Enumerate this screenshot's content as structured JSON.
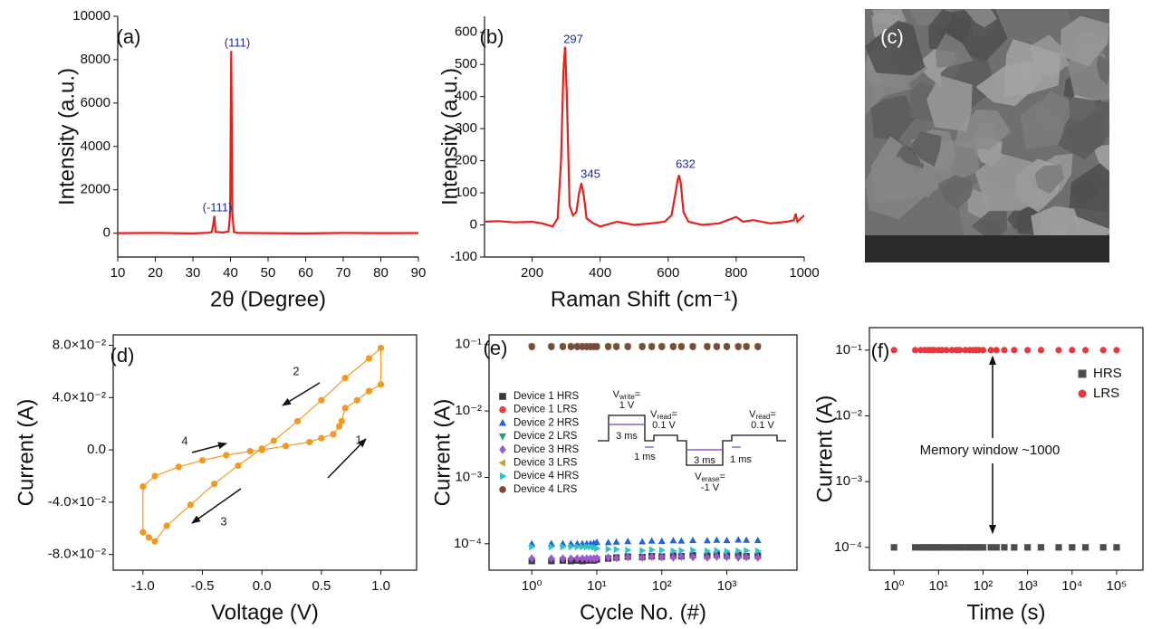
{
  "chart_data": [
    {
      "type": "line",
      "panel_label": "(a)",
      "xlabel": "2θ (Degree)",
      "ylabel": "Intensity (a.u.)",
      "color": "#e8201c",
      "x": [
        10,
        20,
        30,
        34,
        35,
        35.4,
        35.7,
        36,
        38,
        39.5,
        39.9,
        40.2,
        40.5,
        40.9,
        42,
        50,
        60,
        70,
        80,
        90
      ],
      "values": [
        0,
        10,
        -10,
        20,
        50,
        400,
        800,
        60,
        30,
        80,
        900,
        8400,
        900,
        60,
        10,
        0,
        -10,
        10,
        0,
        5
      ],
      "xlim": [
        10,
        90
      ],
      "ylim": [
        -1100,
        10000
      ],
      "xticks": [
        10,
        20,
        30,
        40,
        50,
        60,
        70,
        80,
        90
      ],
      "yticks": [
        0,
        2000,
        4000,
        6000,
        8000,
        10000
      ],
      "annotations": [
        "(-111)",
        "(111)"
      ],
      "annotation_color": "#1c2a9c"
    },
    {
      "type": "line",
      "panel_label": "(b)",
      "xlabel": "Raman Shift (cm⁻¹)",
      "ylabel": "Intensity (a.u.)",
      "color": "#e8201c",
      "x": [
        60,
        100,
        150,
        200,
        230,
        260,
        275,
        285,
        292,
        297,
        302,
        310,
        320,
        330,
        338,
        345,
        352,
        360,
        380,
        400,
        450,
        500,
        550,
        590,
        610,
        620,
        628,
        632,
        637,
        645,
        660,
        700,
        750,
        800,
        820,
        850,
        900,
        950,
        970,
        975,
        980,
        1000
      ],
      "values": [
        10,
        12,
        8,
        10,
        5,
        -5,
        20,
        200,
        480,
        555,
        400,
        60,
        30,
        40,
        100,
        130,
        90,
        20,
        5,
        -5,
        10,
        0,
        5,
        10,
        30,
        90,
        140,
        155,
        130,
        40,
        10,
        0,
        5,
        25,
        10,
        15,
        5,
        10,
        15,
        35,
        10,
        30
      ],
      "xlim": [
        60,
        1000
      ],
      "ylim": [
        -100,
        650
      ],
      "xticks": [
        200,
        400,
        600,
        800,
        1000
      ],
      "yticks": [
        -100,
        0,
        100,
        200,
        300,
        400,
        500,
        600
      ],
      "annotations": [
        "297",
        "345",
        "632"
      ],
      "annotation_color": "#1c2a9c"
    },
    {
      "type": "image",
      "panel_label": "(c)"
    },
    {
      "type": "line",
      "panel_label": "(d)",
      "xlabel": "Voltage (V)",
      "ylabel": "Current (A)",
      "color": "#f39a1e",
      "marker": "circle",
      "x": [
        0,
        0.2,
        0.4,
        0.5,
        0.6,
        0.65,
        0.67,
        0.7,
        0.8,
        0.9,
        1.0,
        1.0,
        0.9,
        0.7,
        0.5,
        0.3,
        0.1,
        0,
        -0.2,
        -0.4,
        -0.6,
        -0.8,
        -0.9,
        -0.95,
        -1.0,
        -1.0,
        -0.9,
        -0.7,
        -0.5,
        -0.3,
        -0.1,
        0
      ],
      "values": [
        0,
        0.003,
        0.006,
        0.009,
        0.012,
        0.018,
        0.022,
        0.032,
        0.038,
        0.045,
        0.05,
        0.078,
        0.07,
        0.055,
        0.038,
        0.022,
        0.007,
        0.001,
        -0.012,
        -0.026,
        -0.042,
        -0.058,
        -0.07,
        -0.067,
        -0.063,
        -0.028,
        -0.02,
        -0.013,
        -0.008,
        -0.004,
        -0.001,
        0
      ],
      "xlim": [
        -1.25,
        1.3
      ],
      "ylim": [
        -0.092,
        0.088
      ],
      "xticks": [
        {
          "value": -1,
          "label": "-1.0"
        },
        -0.5,
        {
          "value": 0,
          "label": "0.0"
        },
        0.5,
        {
          "value": 1,
          "label": "1.0"
        }
      ],
      "yticks": [
        {
          "value": -0.08,
          "label": "-8.0×10⁻²"
        },
        {
          "value": -0.04,
          "label": "-4.0×10⁻²"
        },
        {
          "value": 0,
          "label": "0.0"
        },
        {
          "value": 0.04,
          "label": "4.0×10⁻²"
        },
        {
          "value": 0.08,
          "label": "8.0×10⁻²"
        }
      ],
      "annotations": [
        "1",
        "2",
        "3",
        "4"
      ],
      "annotation_color": "#222222"
    },
    {
      "type": "scatter",
      "panel_label": "(e)",
      "xlabel": "Cycle No. (#)",
      "ylabel": "Current (A)",
      "xscale": "log",
      "yscale": "log",
      "xlim": [
        0.22,
        12000
      ],
      "ylim": [
        4e-05,
        0.14
      ],
      "xticks": [
        {
          "value": 1,
          "label": "10⁰"
        },
        {
          "value": 10,
          "label": "10¹"
        },
        {
          "value": 100,
          "label": "10²"
        },
        {
          "value": 1000,
          "label": "10³"
        }
      ],
      "yticks": [
        {
          "value": 0.0001,
          "label": "10⁻⁴"
        },
        {
          "value": 0.001,
          "label": "10⁻³"
        },
        {
          "value": 0.01,
          "label": "10⁻²"
        },
        {
          "value": 0.1,
          "label": "10⁻¹"
        }
      ],
      "x": [
        1,
        2,
        3,
        4,
        5,
        6,
        7,
        8,
        9,
        10,
        15,
        20,
        30,
        50,
        70,
        100,
        150,
        200,
        300,
        500,
        700,
        1000,
        1500,
        2000,
        3000
      ],
      "series": [
        {
          "name": "Device 1 HRS",
          "color": "#3a3a3a",
          "marker": "square",
          "values": [
            5.5e-05,
            5.5e-05,
            5.6e-05,
            5.5e-05,
            5.6e-05,
            5.5e-05,
            5.6e-05,
            5.7e-05,
            5.6e-05,
            5.8e-05,
            6e-05,
            6.2e-05,
            6.4e-05,
            6.3e-05,
            6.5e-05,
            6.4e-05,
            6.6e-05,
            6.5e-05,
            6.7e-05,
            6.6e-05,
            6.8e-05,
            6.6e-05,
            6.7e-05,
            6.5e-05,
            6.6e-05
          ]
        },
        {
          "name": "Device 1 LRS",
          "color": "#e8403a",
          "marker": "circle",
          "values": [
            0.095,
            0.095,
            0.095,
            0.095,
            0.095,
            0.095,
            0.095,
            0.095,
            0.095,
            0.095,
            0.095,
            0.095,
            0.095,
            0.095,
            0.095,
            0.095,
            0.095,
            0.095,
            0.095,
            0.095,
            0.095,
            0.095,
            0.095,
            0.095,
            0.095
          ]
        },
        {
          "name": "Device 2 HRS",
          "color": "#2563d6",
          "marker": "triangle",
          "values": [
            0.0001,
            0.0001,
            0.0001,
            0.0001,
            0.0001,
            0.0001,
            0.0001,
            0.0001,
            0.000102,
            0.000105,
            0.000104,
            0.000106,
            0.000108,
            0.000107,
            0.00011,
            0.000109,
            0.000111,
            0.00011,
            0.000112,
            0.000111,
            0.000113,
            0.000112,
            0.000114,
            0.000113,
            0.000112
          ]
        },
        {
          "name": "Device 2 LRS",
          "color": "#2a9d6a",
          "marker": "triangle-down",
          "values": [
            0.093,
            0.093,
            0.093,
            0.093,
            0.093,
            0.093,
            0.093,
            0.093,
            0.093,
            0.093,
            0.093,
            0.093,
            0.093,
            0.093,
            0.093,
            0.093,
            0.093,
            0.093,
            0.093,
            0.093,
            0.093,
            0.093,
            0.093,
            0.093,
            0.093
          ]
        },
        {
          "name": "Device 3 HRS",
          "color": "#9b59d0",
          "marker": "diamond",
          "values": [
            6e-05,
            6e-05,
            6e-05,
            6e-05,
            6e-05,
            6e-05,
            6e-05,
            6e-05,
            6e-05,
            6.1e-05,
            6.2e-05,
            6.1e-05,
            6.3e-05,
            6.2e-05,
            6.4e-05,
            6.3e-05,
            6.2e-05,
            6.4e-05,
            6.3e-05,
            6.2e-05,
            6.4e-05,
            6.3e-05,
            6.2e-05,
            6.3e-05,
            6.2e-05
          ]
        },
        {
          "name": "Device 3 LRS",
          "color": "#c9a227",
          "marker": "triangle-left",
          "values": [
            0.094,
            0.094,
            0.094,
            0.094,
            0.094,
            0.094,
            0.094,
            0.094,
            0.094,
            0.094,
            0.094,
            0.094,
            0.094,
            0.094,
            0.094,
            0.094,
            0.094,
            0.094,
            0.094,
            0.094,
            0.094,
            0.094,
            0.094,
            0.094,
            0.094
          ]
        },
        {
          "name": "Device 4 HRS",
          "color": "#2ec4c4",
          "marker": "triangle-right",
          "values": [
            9e-05,
            9e-05,
            9e-05,
            9e-05,
            9e-05,
            9e-05,
            9e-05,
            9e-05,
            8.8e-05,
            8.5e-05,
            8.3e-05,
            8.2e-05,
            8e-05,
            7.9e-05,
            8.1e-05,
            8e-05,
            7.8e-05,
            7.9e-05,
            8e-05,
            7.8e-05,
            7.9e-05,
            7.7e-05,
            7.8e-05,
            7.9e-05,
            7.8e-05
          ]
        },
        {
          "name": "Device 4 LRS",
          "color": "#7a4a3a",
          "marker": "circle",
          "values": [
            0.092,
            0.092,
            0.092,
            0.092,
            0.092,
            0.092,
            0.092,
            0.092,
            0.092,
            0.092,
            0.092,
            0.092,
            0.092,
            0.092,
            0.092,
            0.092,
            0.092,
            0.092,
            0.092,
            0.092,
            0.092,
            0.092,
            0.092,
            0.092,
            0.092
          ]
        }
      ],
      "inset": {
        "labels": [
          {
            "symbol": "V",
            "subscript": "write",
            "sign": "=",
            "value": "1 V"
          },
          {
            "symbol": "V",
            "subscript": "read",
            "sign": "=",
            "value": "0.1 V"
          },
          {
            "symbol": "V",
            "subscript": "erase",
            "sign": "=",
            "value": "-1 V"
          },
          {
            "symbol": "V",
            "subscript": "read",
            "sign": "=",
            "value": "0.1 V"
          }
        ],
        "durations": [
          "3 ms",
          "1 ms",
          "3 ms",
          "1 ms"
        ]
      }
    },
    {
      "type": "scatter",
      "panel_label": "(f)",
      "xlabel": "Time (s)",
      "ylabel": "Current (A)",
      "xscale": "log",
      "yscale": "log",
      "xlim": [
        0.28,
        390000
      ],
      "ylim": [
        4.5e-05,
        0.22
      ],
      "xticks": [
        {
          "value": 1,
          "label": "10⁰"
        },
        {
          "value": 10,
          "label": "10¹"
        },
        {
          "value": 100,
          "label": "10²"
        },
        {
          "value": 1000,
          "label": "10³"
        },
        {
          "value": 10000,
          "label": "10⁴"
        },
        {
          "value": 100000,
          "label": "10⁵"
        }
      ],
      "yticks": [
        {
          "value": 0.0001,
          "label": "10⁻⁴"
        },
        {
          "value": 0.001,
          "label": "10⁻³"
        },
        {
          "value": 0.01,
          "label": "10⁻²"
        },
        {
          "value": 0.1,
          "label": "10⁻¹"
        }
      ],
      "x": [
        1,
        3,
        4,
        5,
        6,
        7,
        8,
        10,
        12,
        15,
        20,
        25,
        30,
        40,
        50,
        60,
        70,
        80,
        100,
        150,
        200,
        300,
        500,
        1000,
        2000,
        5000,
        10000,
        20000,
        50000,
        100000
      ],
      "series": [
        {
          "name": "HRS",
          "color": "#4d4d4d",
          "marker": "square",
          "values": [
            0.0001,
            0.0001,
            0.0001,
            0.0001,
            0.0001,
            0.0001,
            0.0001,
            0.0001,
            0.0001,
            0.0001,
            0.0001,
            0.0001,
            0.0001,
            0.0001,
            0.0001,
            0.0001,
            0.0001,
            0.0001,
            0.0001,
            0.0001,
            0.0001,
            0.0001,
            0.0001,
            0.0001,
            0.0001,
            0.0001,
            0.0001,
            0.0001,
            0.0001,
            0.0001
          ]
        },
        {
          "name": "LRS",
          "color": "#e8373d",
          "marker": "circle",
          "values": [
            0.1,
            0.1,
            0.1,
            0.1,
            0.1,
            0.1,
            0.1,
            0.1,
            0.1,
            0.1,
            0.1,
            0.1,
            0.1,
            0.1,
            0.1,
            0.1,
            0.1,
            0.1,
            0.1,
            0.1,
            0.1,
            0.1,
            0.1,
            0.1,
            0.1,
            0.1,
            0.1,
            0.1,
            0.1,
            0.1
          ]
        }
      ],
      "annotations": [
        "Memory window ~1000"
      ],
      "annotation_color": "#111111"
    }
  ]
}
